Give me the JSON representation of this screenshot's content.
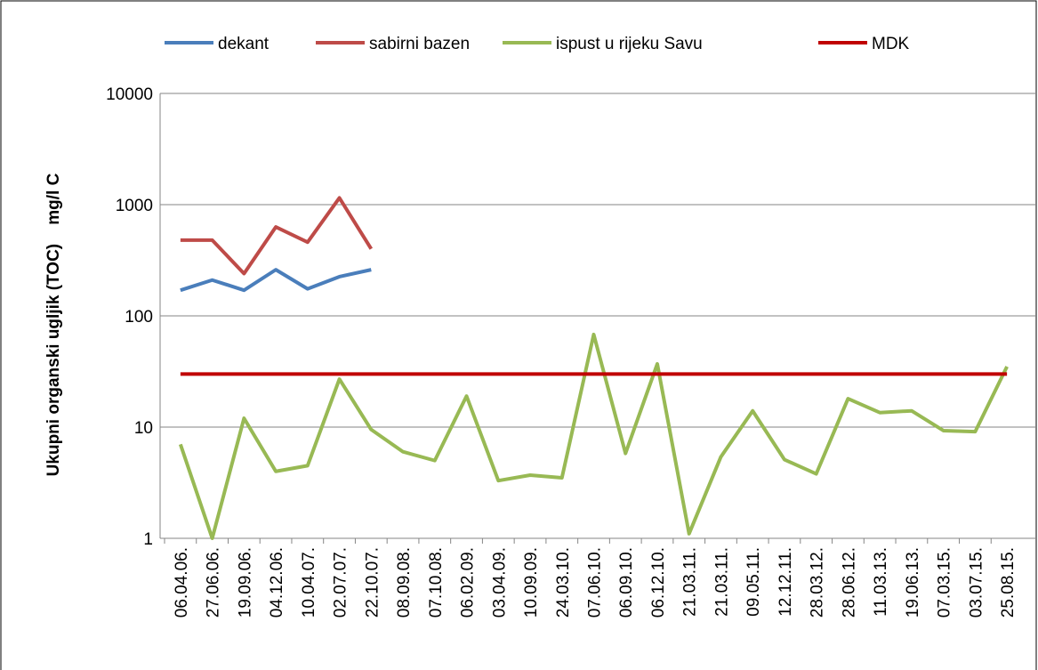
{
  "chart_data": {
    "type": "line",
    "y_label": "Ukupni organski ugljik (TOC)    mg/l C",
    "log_scale": true,
    "grid": true,
    "legend": "top",
    "categories": [
      "06.04.06.",
      "27.06.06.",
      "19.09.06.",
      "04.12.06.",
      "10.04.07.",
      "02.07.07.",
      "22.10.07.",
      "08.09.08.",
      "07.10.08.",
      "06.02.09.",
      "03.04.09.",
      "10.09.09.",
      "24.03.10.",
      "07.06.10.",
      "06.09.10.",
      "06.12.10.",
      "21.03.11.",
      "21.03.11.",
      "09.05.11.",
      "12.12.11.",
      "28.03.12.",
      "28.06.12.",
      "11.03.13.",
      "19.06.13.",
      "07.03.15.",
      "03.07.15.",
      "25.08.15."
    ],
    "series": [
      {
        "name": "dekant",
        "color": "#4a7ebb",
        "values": [
          170,
          210,
          170,
          260,
          175,
          225,
          260,
          null,
          null,
          null,
          null,
          null,
          null,
          null,
          null,
          null,
          null,
          null,
          null,
          null,
          null,
          null,
          null,
          null,
          null,
          null,
          null
        ]
      },
      {
        "name": "sabirni bazen",
        "color": "#be4b48",
        "values": [
          480,
          480,
          240,
          630,
          460,
          1150,
          400,
          null,
          null,
          null,
          null,
          null,
          null,
          null,
          null,
          null,
          null,
          null,
          null,
          null,
          null,
          null,
          null,
          null,
          null,
          null,
          null
        ]
      },
      {
        "name": "ispust u rijeku Savu",
        "color": "#98b954",
        "values": [
          7,
          1,
          12,
          4,
          4.5,
          27,
          9.5,
          6,
          5,
          19,
          3.3,
          3.7,
          3.5,
          68,
          5.8,
          37,
          1.1,
          5.4,
          14,
          5.1,
          3.8,
          18,
          13.5,
          14,
          9.3,
          9.1,
          35
        ]
      },
      {
        "name": "MDK",
        "color": "#c00000",
        "values": [
          30,
          30,
          30,
          30,
          30,
          30,
          30,
          30,
          30,
          30,
          30,
          30,
          30,
          30,
          30,
          30,
          30,
          30,
          30,
          30,
          30,
          30,
          30,
          30,
          30,
          30,
          30
        ]
      }
    ],
    "ylim": [
      1,
      10000
    ],
    "yticks": [
      1,
      10,
      100,
      1000,
      10000
    ]
  }
}
